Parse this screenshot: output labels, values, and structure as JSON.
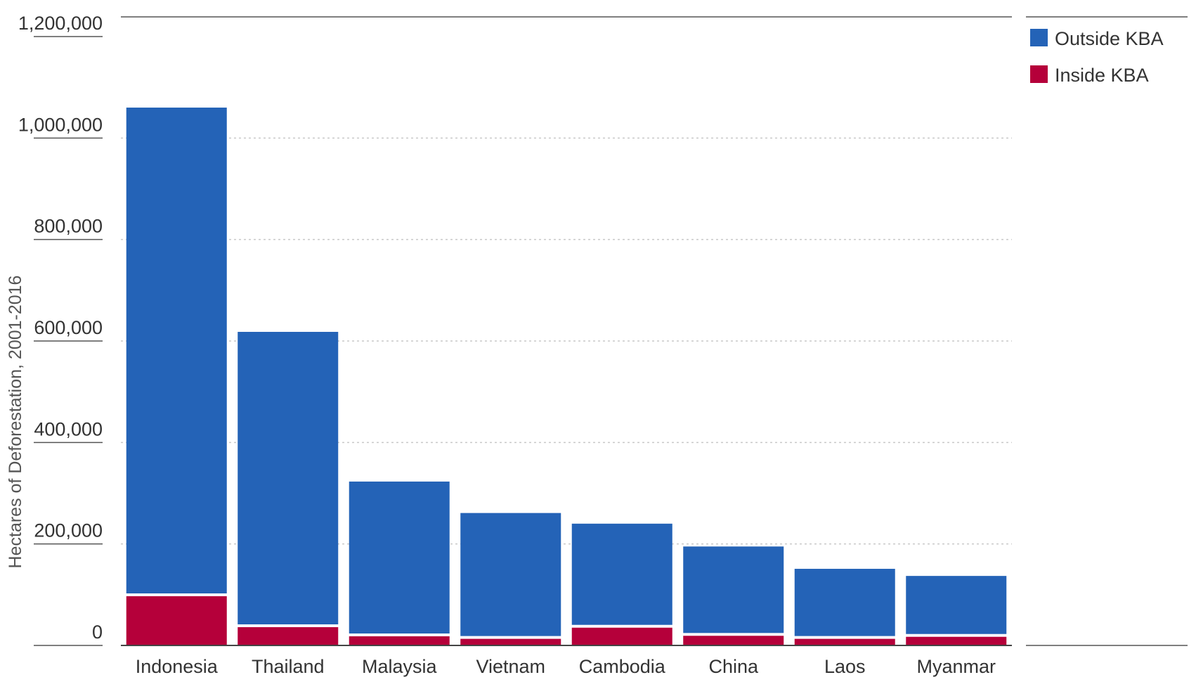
{
  "chart_data": {
    "type": "bar",
    "stacked": true,
    "title": "",
    "xlabel": "",
    "ylabel": "Hectares of Deforestation, 2001-2016",
    "ylim": [
      0,
      1200000
    ],
    "yticks": [
      0,
      200000,
      400000,
      600000,
      800000,
      1000000,
      1200000
    ],
    "ytick_labels": [
      "0",
      "200,000",
      "400,000",
      "600,000",
      "800,000",
      "1,000,000",
      "1,200,000"
    ],
    "grid": true,
    "legend_position": "top-right",
    "categories": [
      "Indonesia",
      "Thailand",
      "Malaysia",
      "Vietnam",
      "Cambodia",
      "China",
      "Laos",
      "Myanmar"
    ],
    "series": [
      {
        "name": "Inside KBA",
        "color": "#b5003a",
        "values": [
          97000,
          36000,
          18000,
          13000,
          35000,
          19000,
          13000,
          17000
        ]
      },
      {
        "name": "Outside KBA",
        "color": "#2463b7",
        "values": [
          963000,
          582000,
          305000,
          248000,
          205000,
          176000,
          138000,
          120000
        ]
      }
    ],
    "legend_order": [
      "Outside KBA",
      "Inside KBA"
    ]
  }
}
